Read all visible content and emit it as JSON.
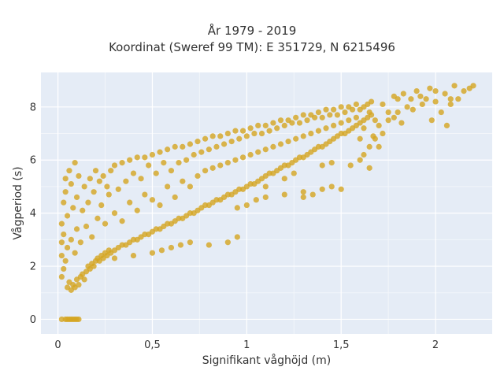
{
  "chart_data": {
    "type": "scatter",
    "title": "År 1979 - 2019",
    "subtitle": "Koordinat (Sweref 99 TM): E 351729, N 6215496",
    "xlabel": "Signifikant våghöjd (m)",
    "ylabel": "Vågperiod (s)",
    "xlim": [
      -0.09,
      2.3
    ],
    "ylim": [
      -0.55,
      9.3
    ],
    "x_ticks": [
      0,
      0.5,
      1,
      1.5,
      2
    ],
    "x_tick_labels": [
      "0",
      "0,5",
      "1",
      "1,5",
      "2"
    ],
    "y_ticks": [
      0,
      2,
      4,
      6,
      8
    ],
    "y_tick_labels": [
      "0",
      "2",
      "4",
      "6",
      "8"
    ],
    "grid": true,
    "legend": "none",
    "background_color": "#e5ecf6",
    "marker_color": "#d4a520",
    "points": [
      [
        0.02,
        0.0
      ],
      [
        0.04,
        0.0
      ],
      [
        0.05,
        0.0
      ],
      [
        0.06,
        0.0
      ],
      [
        0.07,
        0.0
      ],
      [
        0.08,
        0.0
      ],
      [
        0.09,
        0.0
      ],
      [
        0.1,
        0.0
      ],
      [
        0.11,
        0.0
      ],
      [
        0.02,
        1.6
      ],
      [
        0.02,
        2.4
      ],
      [
        0.02,
        2.9
      ],
      [
        0.02,
        3.6
      ],
      [
        0.03,
        1.9
      ],
      [
        0.03,
        3.2
      ],
      [
        0.03,
        4.4
      ],
      [
        0.04,
        2.2
      ],
      [
        0.04,
        4.8
      ],
      [
        0.04,
        5.3
      ],
      [
        0.05,
        1.2
      ],
      [
        0.05,
        2.7
      ],
      [
        0.05,
        3.9
      ],
      [
        0.06,
        1.4
      ],
      [
        0.06,
        5.6
      ],
      [
        0.07,
        1.1
      ],
      [
        0.07,
        3.0
      ],
      [
        0.07,
        5.1
      ],
      [
        0.08,
        1.3
      ],
      [
        0.08,
        4.2
      ],
      [
        0.09,
        1.2
      ],
      [
        0.09,
        2.5
      ],
      [
        0.09,
        5.9
      ],
      [
        0.1,
        1.5
      ],
      [
        0.1,
        3.4
      ],
      [
        0.1,
        4.6
      ],
      [
        0.11,
        1.3
      ],
      [
        0.11,
        5.4
      ],
      [
        0.12,
        1.6
      ],
      [
        0.12,
        2.9
      ],
      [
        0.13,
        1.7
      ],
      [
        0.13,
        4.1
      ],
      [
        0.14,
        1.5
      ],
      [
        0.14,
        5.0
      ],
      [
        0.15,
        1.8
      ],
      [
        0.15,
        3.5
      ],
      [
        0.16,
        2.0
      ],
      [
        0.16,
        4.4
      ],
      [
        0.17,
        1.9
      ],
      [
        0.17,
        5.3
      ],
      [
        0.18,
        2.1
      ],
      [
        0.18,
        3.1
      ],
      [
        0.19,
        2.0
      ],
      [
        0.19,
        4.8
      ],
      [
        0.2,
        2.2
      ],
      [
        0.2,
        5.6
      ],
      [
        0.21,
        2.3
      ],
      [
        0.21,
        3.8
      ],
      [
        0.22,
        2.2
      ],
      [
        0.22,
        5.2
      ],
      [
        0.23,
        2.4
      ],
      [
        0.23,
        4.3
      ],
      [
        0.24,
        2.3
      ],
      [
        0.24,
        5.4
      ],
      [
        0.25,
        2.5
      ],
      [
        0.25,
        3.6
      ],
      [
        0.26,
        2.4
      ],
      [
        0.26,
        5.0
      ],
      [
        0.27,
        2.6
      ],
      [
        0.27,
        4.7
      ],
      [
        0.28,
        2.5
      ],
      [
        0.28,
        5.6
      ],
      [
        0.3,
        2.6
      ],
      [
        0.3,
        4.0
      ],
      [
        0.3,
        5.8
      ],
      [
        0.32,
        2.7
      ],
      [
        0.32,
        4.9
      ],
      [
        0.34,
        2.8
      ],
      [
        0.34,
        3.7
      ],
      [
        0.34,
        5.9
      ],
      [
        0.36,
        2.8
      ],
      [
        0.36,
        5.2
      ],
      [
        0.38,
        2.9
      ],
      [
        0.38,
        4.4
      ],
      [
        0.38,
        6.0
      ],
      [
        0.4,
        3.0
      ],
      [
        0.4,
        5.5
      ],
      [
        0.42,
        3.0
      ],
      [
        0.42,
        4.1
      ],
      [
        0.42,
        6.1
      ],
      [
        0.44,
        3.1
      ],
      [
        0.44,
        5.3
      ],
      [
        0.46,
        3.2
      ],
      [
        0.46,
        4.7
      ],
      [
        0.46,
        6.1
      ],
      [
        0.48,
        3.2
      ],
      [
        0.48,
        5.8
      ],
      [
        0.5,
        3.3
      ],
      [
        0.5,
        4.5
      ],
      [
        0.5,
        6.2
      ],
      [
        0.52,
        3.4
      ],
      [
        0.52,
        5.5
      ],
      [
        0.54,
        3.4
      ],
      [
        0.54,
        4.3
      ],
      [
        0.54,
        6.3
      ],
      [
        0.56,
        3.5
      ],
      [
        0.56,
        5.9
      ],
      [
        0.58,
        3.6
      ],
      [
        0.58,
        5.0
      ],
      [
        0.58,
        6.4
      ],
      [
        0.6,
        3.6
      ],
      [
        0.6,
        5.6
      ],
      [
        0.62,
        3.7
      ],
      [
        0.62,
        4.6
      ],
      [
        0.62,
        6.5
      ],
      [
        0.64,
        3.8
      ],
      [
        0.64,
        5.9
      ],
      [
        0.66,
        3.8
      ],
      [
        0.66,
        5.2
      ],
      [
        0.66,
        6.5
      ],
      [
        0.68,
        3.9
      ],
      [
        0.68,
        6.0
      ],
      [
        0.7,
        4.0
      ],
      [
        0.7,
        5.0
      ],
      [
        0.7,
        6.6
      ],
      [
        0.72,
        4.0
      ],
      [
        0.72,
        6.2
      ],
      [
        0.74,
        4.1
      ],
      [
        0.74,
        5.4
      ],
      [
        0.74,
        6.7
      ],
      [
        0.76,
        4.2
      ],
      [
        0.76,
        6.3
      ],
      [
        0.78,
        4.3
      ],
      [
        0.78,
        5.6
      ],
      [
        0.78,
        6.8
      ],
      [
        0.8,
        4.3
      ],
      [
        0.8,
        6.4
      ],
      [
        0.82,
        4.4
      ],
      [
        0.82,
        5.7
      ],
      [
        0.82,
        6.9
      ],
      [
        0.84,
        4.5
      ],
      [
        0.84,
        6.5
      ],
      [
        0.86,
        4.5
      ],
      [
        0.86,
        5.8
      ],
      [
        0.86,
        6.9
      ],
      [
        0.88,
        4.6
      ],
      [
        0.88,
        6.6
      ],
      [
        0.9,
        4.7
      ],
      [
        0.9,
        5.9
      ],
      [
        0.9,
        7.0
      ],
      [
        0.92,
        4.7
      ],
      [
        0.92,
        6.7
      ],
      [
        0.94,
        4.8
      ],
      [
        0.94,
        6.0
      ],
      [
        0.94,
        7.1
      ],
      [
        0.96,
        4.9
      ],
      [
        0.96,
        6.8
      ],
      [
        0.98,
        4.9
      ],
      [
        0.98,
        6.1
      ],
      [
        0.98,
        7.1
      ],
      [
        1.0,
        5.0
      ],
      [
        1.0,
        6.9
      ],
      [
        1.02,
        5.1
      ],
      [
        1.02,
        6.2
      ],
      [
        1.02,
        7.2
      ],
      [
        1.04,
        5.1
      ],
      [
        1.04,
        7.0
      ],
      [
        1.06,
        5.2
      ],
      [
        1.06,
        6.3
      ],
      [
        1.06,
        7.3
      ],
      [
        1.08,
        5.3
      ],
      [
        1.08,
        7.0
      ],
      [
        1.1,
        5.4
      ],
      [
        1.1,
        6.4
      ],
      [
        1.1,
        7.3
      ],
      [
        1.12,
        5.5
      ],
      [
        1.12,
        7.1
      ],
      [
        1.14,
        5.5
      ],
      [
        1.14,
        6.5
      ],
      [
        1.14,
        7.4
      ],
      [
        1.16,
        5.6
      ],
      [
        1.16,
        7.2
      ],
      [
        1.18,
        5.7
      ],
      [
        1.18,
        6.6
      ],
      [
        1.18,
        7.5
      ],
      [
        1.2,
        5.8
      ],
      [
        1.2,
        7.3
      ],
      [
        1.22,
        5.8
      ],
      [
        1.22,
        6.7
      ],
      [
        1.22,
        7.5
      ],
      [
        1.24,
        5.9
      ],
      [
        1.24,
        7.4
      ],
      [
        1.26,
        6.0
      ],
      [
        1.26,
        6.8
      ],
      [
        1.26,
        7.6
      ],
      [
        1.28,
        6.1
      ],
      [
        1.28,
        7.4
      ],
      [
        1.3,
        6.1
      ],
      [
        1.3,
        6.9
      ],
      [
        1.3,
        7.7
      ],
      [
        1.32,
        6.2
      ],
      [
        1.32,
        7.5
      ],
      [
        1.34,
        6.3
      ],
      [
        1.34,
        7.0
      ],
      [
        1.34,
        7.7
      ],
      [
        1.36,
        6.4
      ],
      [
        1.36,
        7.6
      ],
      [
        1.38,
        6.5
      ],
      [
        1.38,
        7.1
      ],
      [
        1.38,
        7.8
      ],
      [
        1.4,
        6.5
      ],
      [
        1.4,
        7.6
      ],
      [
        1.42,
        6.6
      ],
      [
        1.42,
        7.2
      ],
      [
        1.42,
        7.9
      ],
      [
        1.44,
        6.7
      ],
      [
        1.44,
        7.7
      ],
      [
        1.46,
        6.8
      ],
      [
        1.46,
        7.3
      ],
      [
        1.46,
        7.9
      ],
      [
        1.48,
        6.9
      ],
      [
        1.48,
        7.7
      ],
      [
        1.5,
        7.0
      ],
      [
        1.5,
        7.4
      ],
      [
        1.5,
        8.0
      ],
      [
        1.52,
        7.0
      ],
      [
        1.52,
        7.8
      ],
      [
        1.54,
        7.1
      ],
      [
        1.54,
        7.5
      ],
      [
        1.54,
        8.0
      ],
      [
        1.56,
        7.2
      ],
      [
        1.56,
        7.9
      ],
      [
        1.58,
        7.3
      ],
      [
        1.58,
        7.6
      ],
      [
        1.58,
        8.1
      ],
      [
        1.6,
        7.4
      ],
      [
        1.6,
        7.9
      ],
      [
        1.62,
        7.5
      ],
      [
        1.62,
        8.0
      ],
      [
        1.64,
        7.6
      ],
      [
        1.64,
        8.1
      ],
      [
        1.66,
        7.7
      ],
      [
        1.66,
        8.2
      ],
      [
        0.3,
        2.3
      ],
      [
        0.4,
        2.4
      ],
      [
        0.5,
        2.5
      ],
      [
        0.55,
        2.6
      ],
      [
        0.6,
        2.7
      ],
      [
        0.65,
        2.8
      ],
      [
        0.7,
        2.9
      ],
      [
        0.8,
        2.8
      ],
      [
        0.9,
        2.9
      ],
      [
        0.95,
        3.1
      ],
      [
        0.95,
        4.2
      ],
      [
        1.0,
        4.3
      ],
      [
        1.05,
        4.5
      ],
      [
        1.1,
        4.6
      ],
      [
        1.2,
        4.7
      ],
      [
        1.3,
        4.8
      ],
      [
        1.4,
        4.9
      ],
      [
        1.45,
        5.0
      ],
      [
        1.3,
        4.6
      ],
      [
        1.35,
        4.7
      ],
      [
        1.1,
        5.0
      ],
      [
        1.2,
        5.3
      ],
      [
        1.25,
        5.5
      ],
      [
        1.4,
        5.8
      ],
      [
        1.45,
        5.9
      ],
      [
        1.5,
        4.9
      ],
      [
        1.55,
        5.8
      ],
      [
        1.6,
        6.0
      ],
      [
        1.62,
        6.2
      ],
      [
        1.65,
        6.5
      ],
      [
        1.6,
        6.8
      ],
      [
        1.62,
        7.2
      ],
      [
        1.65,
        7.8
      ],
      [
        1.67,
        6.9
      ],
      [
        1.68,
        7.5
      ],
      [
        1.7,
        7.3
      ],
      [
        1.72,
        7.0
      ],
      [
        1.72,
        8.1
      ],
      [
        1.75,
        7.8
      ],
      [
        1.75,
        7.5
      ],
      [
        1.78,
        7.6
      ],
      [
        1.78,
        8.4
      ],
      [
        1.8,
        7.8
      ],
      [
        1.8,
        8.3
      ],
      [
        1.82,
        7.4
      ],
      [
        1.83,
        8.5
      ],
      [
        1.85,
        8.0
      ],
      [
        1.87,
        8.3
      ],
      [
        1.88,
        7.9
      ],
      [
        1.9,
        8.6
      ],
      [
        1.92,
        8.4
      ],
      [
        1.93,
        8.1
      ],
      [
        1.95,
        8.3
      ],
      [
        1.97,
        8.7
      ],
      [
        1.98,
        7.5
      ],
      [
        2.0,
        8.2
      ],
      [
        2.0,
        8.6
      ],
      [
        2.03,
        7.8
      ],
      [
        2.05,
        8.5
      ],
      [
        2.08,
        8.1
      ],
      [
        2.1,
        8.8
      ],
      [
        2.12,
        8.3
      ],
      [
        2.15,
        8.6
      ],
      [
        2.18,
        8.7
      ],
      [
        2.2,
        8.8
      ],
      [
        1.65,
        5.7
      ],
      [
        1.7,
        6.5
      ],
      [
        1.68,
        6.8
      ],
      [
        2.06,
        7.3
      ],
      [
        2.08,
        8.3
      ]
    ]
  }
}
